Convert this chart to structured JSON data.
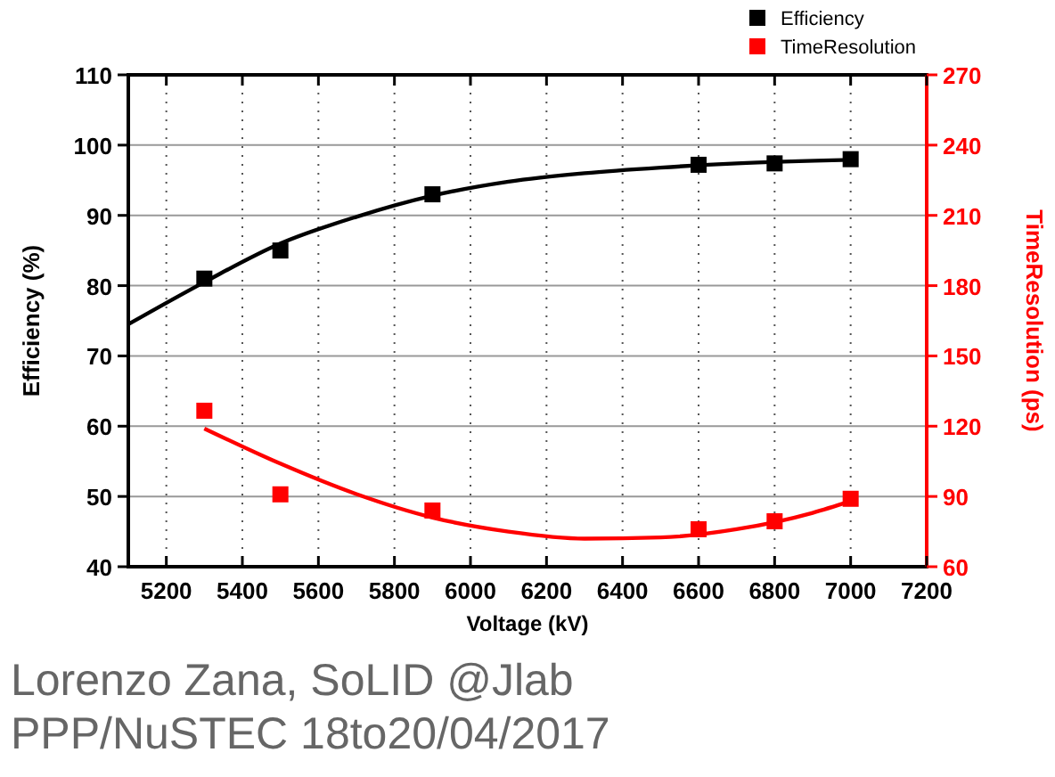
{
  "chart_data": {
    "type": "scatter",
    "xlabel": "Voltage (kV)",
    "ylabel": "Efficiency (%)",
    "y2label": "TimeResolution (ps)",
    "xlim": [
      5100,
      7200
    ],
    "xticks": [
      5200,
      5400,
      5600,
      5800,
      6000,
      6200,
      6400,
      6600,
      6800,
      7000,
      7200
    ],
    "ylim": [
      40,
      110
    ],
    "yticks": [
      40,
      50,
      60,
      70,
      80,
      90,
      100,
      110
    ],
    "y2lim": [
      60,
      270
    ],
    "y2ticks": [
      60,
      90,
      120,
      150,
      180,
      210,
      240,
      270
    ],
    "grid": true,
    "legend": "top right",
    "marker": "square",
    "series": [
      {
        "name": "Efficiency",
        "color": "#000000",
        "x": [
          5300,
          5500,
          5900,
          6600,
          6800,
          7000
        ],
        "values": [
          81,
          85,
          93,
          97.2,
          97.4,
          98
        ]
      },
      {
        "name": "TimeResolution",
        "axis": "y2",
        "color": "#ff0000",
        "x": [
          5300,
          5500,
          5900,
          6600,
          6800,
          7000
        ],
        "values": [
          126.6,
          90.9,
          84,
          76,
          79.4,
          89
        ]
      },
      {
        "type": "line",
        "color": "#000000",
        "marker": "none",
        "x": [
          5100,
          5300,
          5500,
          5700,
          5900,
          6100,
          6300,
          6500,
          6700,
          7000
        ],
        "values": [
          74.5,
          80.5,
          86,
          89.8,
          92.8,
          94.8,
          96,
          96.8,
          97.4,
          97.9
        ]
      },
      {
        "type": "line",
        "axis": "y2",
        "color": "#ff0000",
        "marker": "none",
        "x": [
          5300,
          5500,
          5700,
          5900,
          6100,
          6300,
          6500,
          6700,
          6900,
          7000
        ],
        "values": [
          119,
          104,
          91,
          81,
          75,
          72,
          72.5,
          76,
          83,
          88
        ]
      }
    ],
    "annotations": [
      "Lorenzo Zana, SoLID @Jlab",
      "PPP/NuSTEC 18to20/04/2017"
    ]
  }
}
